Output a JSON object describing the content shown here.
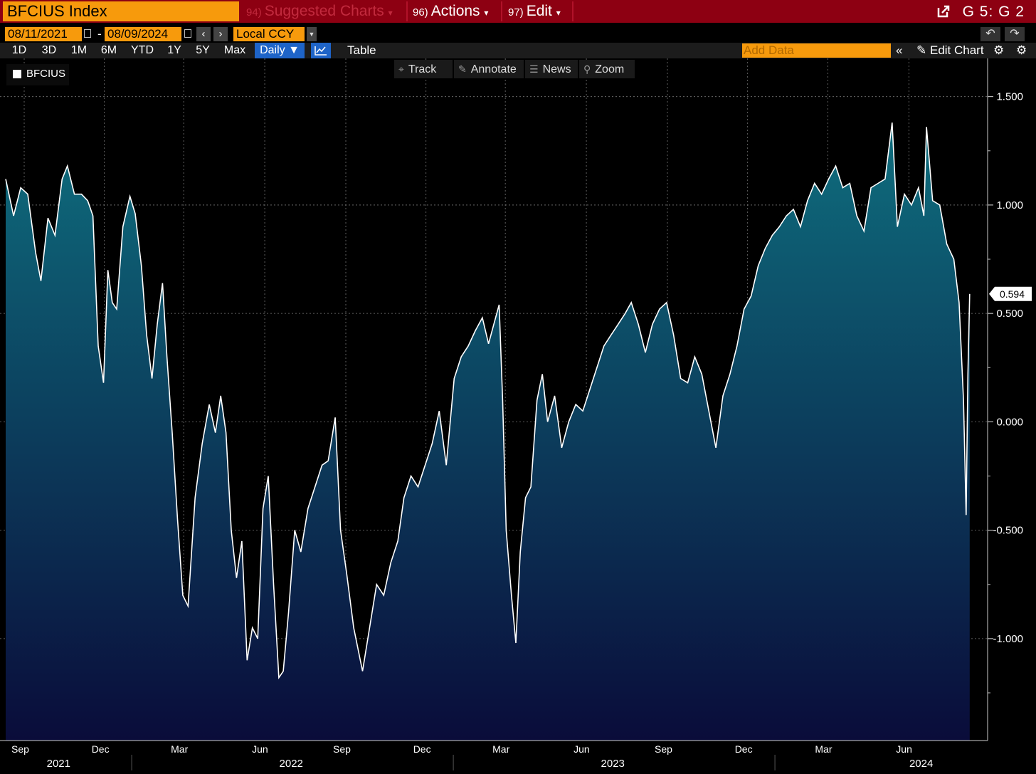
{
  "title_bar": {
    "security": "BFCIUS Index",
    "suggested": {
      "num": "94)",
      "label": "Suggested Charts",
      "arrow": "▾"
    },
    "actions": {
      "num": "96)",
      "label": "Actions",
      "arrow": "▾"
    },
    "edit": {
      "num": "97)",
      "label": "Edit",
      "arrow": "▾"
    },
    "page_id": "G 5: G 2",
    "external_icon": "external-link-icon"
  },
  "toolbar": {
    "start_date": "08/11/2021",
    "date_sep": "-",
    "end_date": "08/09/2024",
    "currency": "Local CCY",
    "periods": [
      "1D",
      "3D",
      "1M",
      "6M",
      "YTD",
      "1Y",
      "5Y",
      "Max"
    ],
    "frequency": "Daily ▼",
    "table_label": "Table",
    "add_data_placeholder": "Add Data",
    "edit_chart_label": "Edit Chart",
    "collapse_icon": "«"
  },
  "chart_tools": {
    "track": "Track",
    "annotate": "Annotate",
    "news": "News",
    "zoom": "Zoom"
  },
  "colors": {
    "accent_orange": "#f79a0c",
    "title_red": "#8d0012",
    "active_blue": "#1e64c8",
    "area_top": "#0e6e7e",
    "area_bottom": "#0a0c3a",
    "line": "#ffffff"
  },
  "chart_data": {
    "type": "area",
    "series": [
      {
        "name": "BFCIUS"
      }
    ],
    "last_value_label": "0.594",
    "ylim": [
      -1.47,
      1.65
    ],
    "y_ticks": [
      1.5,
      1.0,
      0.5,
      0.0,
      -0.5,
      -1.0
    ],
    "y_tick_labels": [
      "1.500",
      "1.000",
      "0.500",
      "0.000",
      "-0.500",
      "-1.000"
    ],
    "x_month_labels": [
      "Sep",
      "Dec",
      "Mar",
      "Jun",
      "Sep",
      "Dec",
      "Mar",
      "Jun",
      "Sep",
      "Dec",
      "Mar",
      "Jun"
    ],
    "x_month_dates": [
      "2021-09-01",
      "2021-12-01",
      "2022-03-01",
      "2022-06-01",
      "2022-09-01",
      "2022-12-01",
      "2023-03-01",
      "2023-06-01",
      "2023-09-01",
      "2023-12-01",
      "2024-03-01",
      "2024-06-01"
    ],
    "x_year_labels": [
      "2021",
      "2022",
      "2023",
      "2024"
    ],
    "x_year_dates": [
      "2021-10-10",
      "2022-07-01",
      "2023-07-01",
      "2024-06-15"
    ],
    "x_range": [
      "2021-08-11",
      "2024-08-31"
    ],
    "grid": true,
    "points": [
      [
        "2021-08-11",
        1.12
      ],
      [
        "2021-08-20",
        0.95
      ],
      [
        "2021-08-28",
        1.08
      ],
      [
        "2021-09-05",
        1.05
      ],
      [
        "2021-09-14",
        0.78
      ],
      [
        "2021-09-20",
        0.65
      ],
      [
        "2021-09-28",
        0.94
      ],
      [
        "2021-10-06",
        0.86
      ],
      [
        "2021-10-14",
        1.12
      ],
      [
        "2021-10-20",
        1.18
      ],
      [
        "2021-10-28",
        1.05
      ],
      [
        "2021-11-05",
        1.05
      ],
      [
        "2021-11-12",
        1.02
      ],
      [
        "2021-11-18",
        0.95
      ],
      [
        "2021-11-24",
        0.35
      ],
      [
        "2021-11-30",
        0.18
      ],
      [
        "2021-12-05",
        0.7
      ],
      [
        "2021-12-10",
        0.55
      ],
      [
        "2021-12-15",
        0.52
      ],
      [
        "2021-12-22",
        0.9
      ],
      [
        "2021-12-30",
        1.04
      ],
      [
        "2022-01-05",
        0.96
      ],
      [
        "2022-01-12",
        0.72
      ],
      [
        "2022-01-18",
        0.4
      ],
      [
        "2022-01-24",
        0.2
      ],
      [
        "2022-01-30",
        0.45
      ],
      [
        "2022-02-05",
        0.64
      ],
      [
        "2022-02-10",
        0.3
      ],
      [
        "2022-02-16",
        -0.05
      ],
      [
        "2022-02-22",
        -0.45
      ],
      [
        "2022-02-28",
        -0.8
      ],
      [
        "2022-03-06",
        -0.85
      ],
      [
        "2022-03-14",
        -0.35
      ],
      [
        "2022-03-22",
        -0.1
      ],
      [
        "2022-03-30",
        0.08
      ],
      [
        "2022-04-06",
        -0.05
      ],
      [
        "2022-04-12",
        0.12
      ],
      [
        "2022-04-18",
        -0.05
      ],
      [
        "2022-04-24",
        -0.5
      ],
      [
        "2022-04-30",
        -0.72
      ],
      [
        "2022-05-06",
        -0.55
      ],
      [
        "2022-05-12",
        -1.1
      ],
      [
        "2022-05-18",
        -0.95
      ],
      [
        "2022-05-24",
        -1.0
      ],
      [
        "2022-05-30",
        -0.4
      ],
      [
        "2022-06-05",
        -0.25
      ],
      [
        "2022-06-11",
        -0.75
      ],
      [
        "2022-06-17",
        -1.18
      ],
      [
        "2022-06-22",
        -1.15
      ],
      [
        "2022-06-28",
        -0.88
      ],
      [
        "2022-07-05",
        -0.5
      ],
      [
        "2022-07-12",
        -0.6
      ],
      [
        "2022-07-20",
        -0.4
      ],
      [
        "2022-07-28",
        -0.3
      ],
      [
        "2022-08-05",
        -0.2
      ],
      [
        "2022-08-12",
        -0.18
      ],
      [
        "2022-08-20",
        0.02
      ],
      [
        "2022-08-26",
        -0.5
      ],
      [
        "2022-09-02",
        -0.7
      ],
      [
        "2022-09-10",
        -0.95
      ],
      [
        "2022-09-20",
        -1.15
      ],
      [
        "2022-09-28",
        -0.95
      ],
      [
        "2022-10-06",
        -0.75
      ],
      [
        "2022-10-14",
        -0.8
      ],
      [
        "2022-10-22",
        -0.65
      ],
      [
        "2022-10-30",
        -0.55
      ],
      [
        "2022-11-06",
        -0.35
      ],
      [
        "2022-11-14",
        -0.25
      ],
      [
        "2022-11-22",
        -0.3
      ],
      [
        "2022-11-30",
        -0.2
      ],
      [
        "2022-12-08",
        -0.1
      ],
      [
        "2022-12-16",
        0.05
      ],
      [
        "2022-12-24",
        -0.2
      ],
      [
        "2023-01-02",
        0.2
      ],
      [
        "2023-01-10",
        0.3
      ],
      [
        "2023-01-18",
        0.35
      ],
      [
        "2023-01-26",
        0.42
      ],
      [
        "2023-02-03",
        0.48
      ],
      [
        "2023-02-10",
        0.36
      ],
      [
        "2023-02-16",
        0.45
      ],
      [
        "2023-02-22",
        0.54
      ],
      [
        "2023-02-26",
        0.1
      ],
      [
        "2023-03-02",
        -0.5
      ],
      [
        "2023-03-08",
        -0.8
      ],
      [
        "2023-03-13",
        -1.02
      ],
      [
        "2023-03-18",
        -0.6
      ],
      [
        "2023-03-24",
        -0.35
      ],
      [
        "2023-03-30",
        -0.3
      ],
      [
        "2023-04-06",
        0.1
      ],
      [
        "2023-04-12",
        0.22
      ],
      [
        "2023-04-18",
        0.0
      ],
      [
        "2023-04-26",
        0.12
      ],
      [
        "2023-05-04",
        -0.12
      ],
      [
        "2023-05-12",
        0.0
      ],
      [
        "2023-05-20",
        0.08
      ],
      [
        "2023-05-28",
        0.05
      ],
      [
        "2023-06-05",
        0.15
      ],
      [
        "2023-06-13",
        0.25
      ],
      [
        "2023-06-21",
        0.35
      ],
      [
        "2023-06-29",
        0.4
      ],
      [
        "2023-07-07",
        0.45
      ],
      [
        "2023-07-15",
        0.5
      ],
      [
        "2023-07-22",
        0.55
      ],
      [
        "2023-07-30",
        0.45
      ],
      [
        "2023-08-07",
        0.32
      ],
      [
        "2023-08-15",
        0.45
      ],
      [
        "2023-08-23",
        0.52
      ],
      [
        "2023-08-31",
        0.55
      ],
      [
        "2023-09-08",
        0.4
      ],
      [
        "2023-09-16",
        0.2
      ],
      [
        "2023-09-24",
        0.18
      ],
      [
        "2023-10-02",
        0.3
      ],
      [
        "2023-10-10",
        0.22
      ],
      [
        "2023-10-18",
        0.05
      ],
      [
        "2023-10-26",
        -0.12
      ],
      [
        "2023-11-03",
        0.12
      ],
      [
        "2023-11-11",
        0.22
      ],
      [
        "2023-11-19",
        0.35
      ],
      [
        "2023-11-27",
        0.52
      ],
      [
        "2023-12-05",
        0.58
      ],
      [
        "2023-12-13",
        0.72
      ],
      [
        "2023-12-21",
        0.8
      ],
      [
        "2023-12-29",
        0.86
      ],
      [
        "2024-01-06",
        0.9
      ],
      [
        "2024-01-14",
        0.95
      ],
      [
        "2024-01-22",
        0.98
      ],
      [
        "2024-01-30",
        0.9
      ],
      [
        "2024-02-07",
        1.02
      ],
      [
        "2024-02-15",
        1.1
      ],
      [
        "2024-02-23",
        1.05
      ],
      [
        "2024-03-02",
        1.12
      ],
      [
        "2024-03-10",
        1.18
      ],
      [
        "2024-03-18",
        1.08
      ],
      [
        "2024-03-26",
        1.1
      ],
      [
        "2024-04-03",
        0.95
      ],
      [
        "2024-04-11",
        0.88
      ],
      [
        "2024-04-19",
        1.08
      ],
      [
        "2024-04-27",
        1.1
      ],
      [
        "2024-05-05",
        1.12
      ],
      [
        "2024-05-13",
        1.38
      ],
      [
        "2024-05-19",
        0.9
      ],
      [
        "2024-05-27",
        1.05
      ],
      [
        "2024-06-04",
        1.0
      ],
      [
        "2024-06-12",
        1.08
      ],
      [
        "2024-06-18",
        0.95
      ],
      [
        "2024-06-21",
        1.36
      ],
      [
        "2024-06-28",
        1.02
      ],
      [
        "2024-07-06",
        1.0
      ],
      [
        "2024-07-14",
        0.82
      ],
      [
        "2024-07-22",
        0.75
      ],
      [
        "2024-07-28",
        0.55
      ],
      [
        "2024-08-02",
        0.1
      ],
      [
        "2024-08-05",
        -0.43
      ],
      [
        "2024-08-07",
        0.22
      ],
      [
        "2024-08-09",
        0.59
      ]
    ]
  }
}
